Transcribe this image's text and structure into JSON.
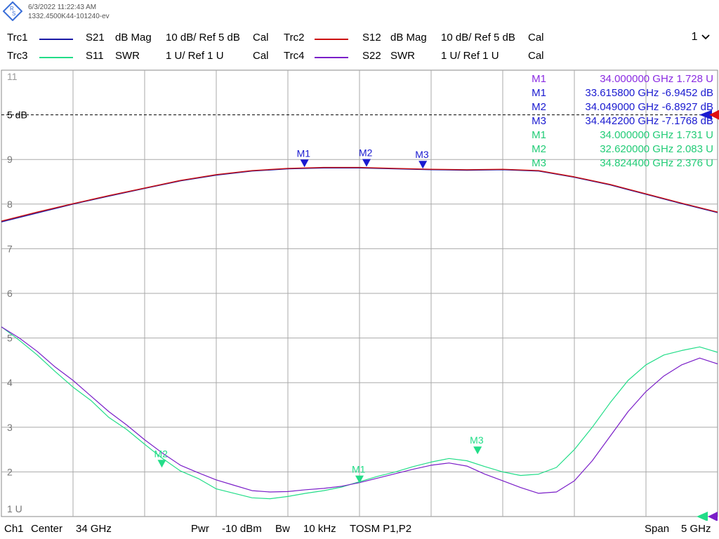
{
  "header": {
    "timestamp": "6/3/2022 11:22:43 AM",
    "device_id": "1332.4500K44-101240-ev",
    "window_selector": "1"
  },
  "traces": [
    {
      "name": "Trc1",
      "param": "S21",
      "format": "dB Mag",
      "scale": "10 dB/ Ref 5 dB",
      "cal": "Cal",
      "color": "#1a1aa6"
    },
    {
      "name": "Trc2",
      "param": "S12",
      "format": "dB Mag",
      "scale": "10 dB/ Ref 5 dB",
      "cal": "Cal",
      "color": "#cc1010"
    },
    {
      "name": "Trc3",
      "param": "S11",
      "format": "SWR",
      "scale": "1 U/ Ref 1 U",
      "cal": "Cal",
      "color": "#22dd88"
    },
    {
      "name": "Trc4",
      "param": "S22",
      "format": "SWR",
      "scale": "1 U/ Ref 1 U",
      "cal": "Cal",
      "color": "#7a1ec8"
    }
  ],
  "footer": {
    "channel": "Ch1",
    "center_label": "Center",
    "center_value": "34 GHz",
    "pwr_label": "Pwr",
    "pwr_value": "-10 dBm",
    "bw_label": "Bw",
    "bw_value": "10 kHz",
    "cal_type": "TOSM P1,P2",
    "span_label": "Span",
    "span_value": "5 GHz"
  },
  "marker_readouts": [
    {
      "name": "M1",
      "text": "34.000000  GHz  1.728  U",
      "color": "#8a2be2"
    },
    {
      "name": "M1",
      "text": "33.615800  GHz  -6.9452  dB",
      "color": "#1a1ad0"
    },
    {
      "name": "M2",
      "text": "34.049000  GHz  -6.8927  dB",
      "color": "#1a1ad0"
    },
    {
      "name": "M3",
      "text": "34.442200  GHz  -7.1768  dB",
      "color": "#1a1ad0"
    },
    {
      "name": "M1",
      "text": "34.000000  GHz  1.731  U",
      "color": "#22cc77"
    },
    {
      "name": "M2",
      "text": "32.620000  GHz  2.083  U",
      "color": "#22cc77"
    },
    {
      "name": "M3",
      "text": "34.824400  GHz  2.376  U",
      "color": "#22cc77"
    }
  ],
  "chart_data": {
    "type": "line",
    "x_range_ghz": [
      31.5,
      36.5
    ],
    "y_range_div": [
      1,
      11
    ],
    "y_tick_labels": [
      {
        "value": 11,
        "label": "11"
      },
      {
        "value": 10,
        "label": "5 dB"
      },
      {
        "value": 9,
        "label": "9"
      },
      {
        "value": 8,
        "label": "8"
      },
      {
        "value": 7,
        "label": "7"
      },
      {
        "value": 6,
        "label": "6"
      },
      {
        "value": 5,
        "label": "5"
      },
      {
        "value": 4,
        "label": "4"
      },
      {
        "value": 3,
        "label": "3"
      },
      {
        "value": 2,
        "label": "2"
      },
      {
        "value": 1,
        "label": "1 U"
      }
    ],
    "reference_line_value": 10,
    "grid": true,
    "series": [
      {
        "name": "Trc1 S21",
        "color": "#1a1aa6",
        "width": 1.4,
        "x": [
          31.5,
          31.75,
          32.0,
          32.25,
          32.5,
          32.75,
          33.0,
          33.25,
          33.5,
          33.75,
          34.0,
          34.25,
          34.5,
          34.75,
          35.0,
          35.25,
          35.5,
          35.75,
          36.0,
          36.25,
          36.5
        ],
        "y": [
          7.6,
          7.8,
          8.0,
          8.18,
          8.35,
          8.52,
          8.65,
          8.74,
          8.79,
          8.81,
          8.81,
          8.79,
          8.77,
          8.76,
          8.77,
          8.74,
          8.6,
          8.43,
          8.22,
          8.01,
          7.81
        ]
      },
      {
        "name": "Trc2 S12",
        "color": "#cc1010",
        "width": 1.4,
        "x": [
          31.5,
          31.75,
          32.0,
          32.25,
          32.5,
          32.75,
          33.0,
          33.25,
          33.5,
          33.75,
          34.0,
          34.25,
          34.5,
          34.75,
          35.0,
          35.25,
          35.5,
          35.75,
          36.0,
          36.25,
          36.5
        ],
        "y": [
          7.62,
          7.82,
          8.01,
          8.19,
          8.36,
          8.53,
          8.66,
          8.75,
          8.8,
          8.82,
          8.82,
          8.8,
          8.78,
          8.77,
          8.78,
          8.75,
          8.61,
          8.44,
          8.23,
          8.02,
          7.82
        ]
      },
      {
        "name": "Trc3 S11",
        "color": "#22dd88",
        "width": 1.2,
        "x": [
          31.5,
          31.625,
          31.75,
          31.875,
          32.0,
          32.125,
          32.25,
          32.375,
          32.5,
          32.625,
          32.75,
          32.875,
          33.0,
          33.125,
          33.25,
          33.375,
          33.5,
          33.625,
          33.75,
          33.875,
          34.0,
          34.125,
          34.25,
          34.375,
          34.5,
          34.625,
          34.75,
          34.875,
          35.0,
          35.125,
          35.25,
          35.375,
          35.5,
          35.625,
          35.75,
          35.875,
          36.0,
          36.125,
          36.25,
          36.375,
          36.5
        ],
        "y": [
          5.25,
          4.95,
          4.62,
          4.25,
          3.9,
          3.6,
          3.22,
          2.95,
          2.62,
          2.3,
          2.02,
          1.85,
          1.62,
          1.52,
          1.42,
          1.4,
          1.45,
          1.52,
          1.58,
          1.66,
          1.78,
          1.9,
          2.0,
          2.12,
          2.22,
          2.3,
          2.25,
          2.12,
          2.0,
          1.92,
          1.95,
          2.1,
          2.5,
          3.0,
          3.55,
          4.05,
          4.4,
          4.62,
          4.72,
          4.8,
          4.68
        ]
      },
      {
        "name": "Trc4 S22",
        "color": "#7a1ec8",
        "width": 1.2,
        "x": [
          31.5,
          31.625,
          31.75,
          31.875,
          32.0,
          32.125,
          32.25,
          32.375,
          32.5,
          32.625,
          32.75,
          32.875,
          33.0,
          33.125,
          33.25,
          33.375,
          33.5,
          33.625,
          33.75,
          33.875,
          34.0,
          34.125,
          34.25,
          34.375,
          34.5,
          34.625,
          34.75,
          34.875,
          35.0,
          35.125,
          35.25,
          35.375,
          35.5,
          35.625,
          35.75,
          35.875,
          36.0,
          36.125,
          36.25,
          36.375,
          36.5
        ],
        "y": [
          5.25,
          5.0,
          4.7,
          4.35,
          4.05,
          3.7,
          3.35,
          3.05,
          2.72,
          2.42,
          2.15,
          1.98,
          1.82,
          1.7,
          1.58,
          1.55,
          1.56,
          1.6,
          1.63,
          1.68,
          1.76,
          1.86,
          1.96,
          2.06,
          2.15,
          2.2,
          2.13,
          1.95,
          1.8,
          1.65,
          1.52,
          1.55,
          1.8,
          2.25,
          2.8,
          3.35,
          3.8,
          4.15,
          4.4,
          4.55,
          4.42
        ]
      }
    ],
    "markers": [
      {
        "name": "M1",
        "x": 33.6158,
        "y": 8.81,
        "color": "#1a1ad0"
      },
      {
        "name": "M2",
        "x": 34.049,
        "y": 8.82,
        "color": "#1a1ad0"
      },
      {
        "name": "M3",
        "x": 34.4422,
        "y": 8.78,
        "color": "#1a1ad0"
      },
      {
        "name": "M1",
        "x": 34.0,
        "y": 1.73,
        "color": "#22dd88"
      },
      {
        "name": "M2",
        "x": 32.62,
        "y": 2.08,
        "color": "#22dd88"
      },
      {
        "name": "M3",
        "x": 34.8244,
        "y": 2.38,
        "color": "#22dd88"
      }
    ]
  }
}
